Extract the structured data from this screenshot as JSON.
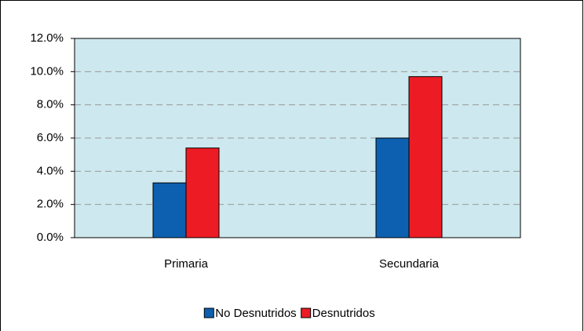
{
  "chart_data": {
    "type": "bar",
    "categories": [
      "Primaria",
      "Secundaria"
    ],
    "series": [
      {
        "name": "No Desnutridos",
        "color": "#0d60b0",
        "values": [
          3.3,
          6.0
        ]
      },
      {
        "name": "Desnutridos",
        "color": "#ed1c24",
        "values": [
          5.4,
          9.7
        ]
      }
    ],
    "ylim": [
      0,
      12
    ],
    "yticks": [
      {
        "value": 0,
        "label": "0.0%"
      },
      {
        "value": 2,
        "label": "2.0%"
      },
      {
        "value": 4,
        "label": "4.0%"
      },
      {
        "value": 6,
        "label": "6.0%"
      },
      {
        "value": 8,
        "label": "8.0%"
      },
      {
        "value": 10,
        "label": "10.0%"
      },
      {
        "value": 12,
        "label": "12.0%"
      }
    ],
    "grid": true,
    "legend": "bottom",
    "plot_background": "#cde8ee"
  }
}
